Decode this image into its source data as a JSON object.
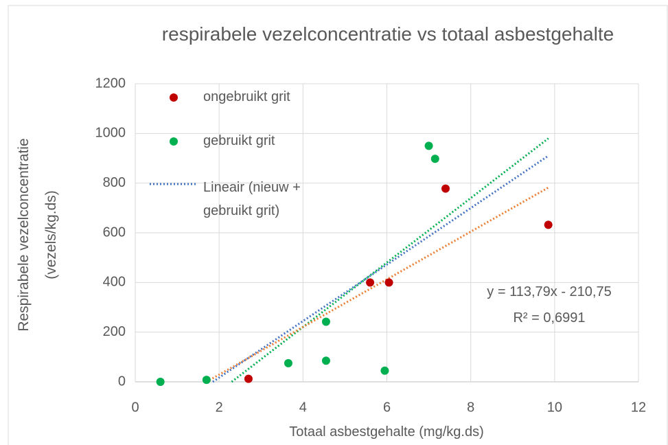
{
  "chart_data": {
    "type": "scatter",
    "title": "respirabele vezelconcentratie vs totaal asbestgehalte",
    "x_label": "Totaal asbestgehalte (mg/kg.ds)",
    "y_label": "Respirabele vezelconcentratie (vezels/kg.ds)",
    "xlim": [
      0,
      12
    ],
    "xticks": [
      0,
      2,
      4,
      6,
      8,
      10,
      12
    ],
    "ylim": [
      0,
      1200
    ],
    "yticks": [
      0,
      200,
      400,
      600,
      800,
      1000,
      1200
    ],
    "grid": true,
    "series": [
      {
        "name": "ongebruikt grit",
        "color": "#c00000",
        "x": [
          2.7,
          5.6,
          6.05,
          7.4,
          9.85
        ],
        "values": [
          12,
          400,
          400,
          778,
          632
        ]
      },
      {
        "name": "gebruikt grit",
        "color": "#00b050",
        "x": [
          0.6,
          1.7,
          3.65,
          4.55,
          4.55,
          5.95,
          7.0,
          7.15
        ],
        "values": [
          0,
          8,
          75,
          242,
          85,
          45,
          950,
          898
        ]
      }
    ],
    "trendlines": [
      {
        "name": "Lineair (nieuw + gebruikt grit)",
        "color": "#4472c4",
        "x": [
          1.85,
          9.85
        ],
        "values": [
          0,
          910
        ]
      },
      {
        "color": "#00b050",
        "x": [
          2.3,
          9.85
        ],
        "values": [
          0,
          980
        ]
      },
      {
        "color": "#ed7d31",
        "x": [
          1.7,
          9.85
        ],
        "values": [
          0,
          782
        ]
      }
    ],
    "annotations": [
      "y = 113,79x - 210,75",
      "R² = 0,6991"
    ]
  }
}
